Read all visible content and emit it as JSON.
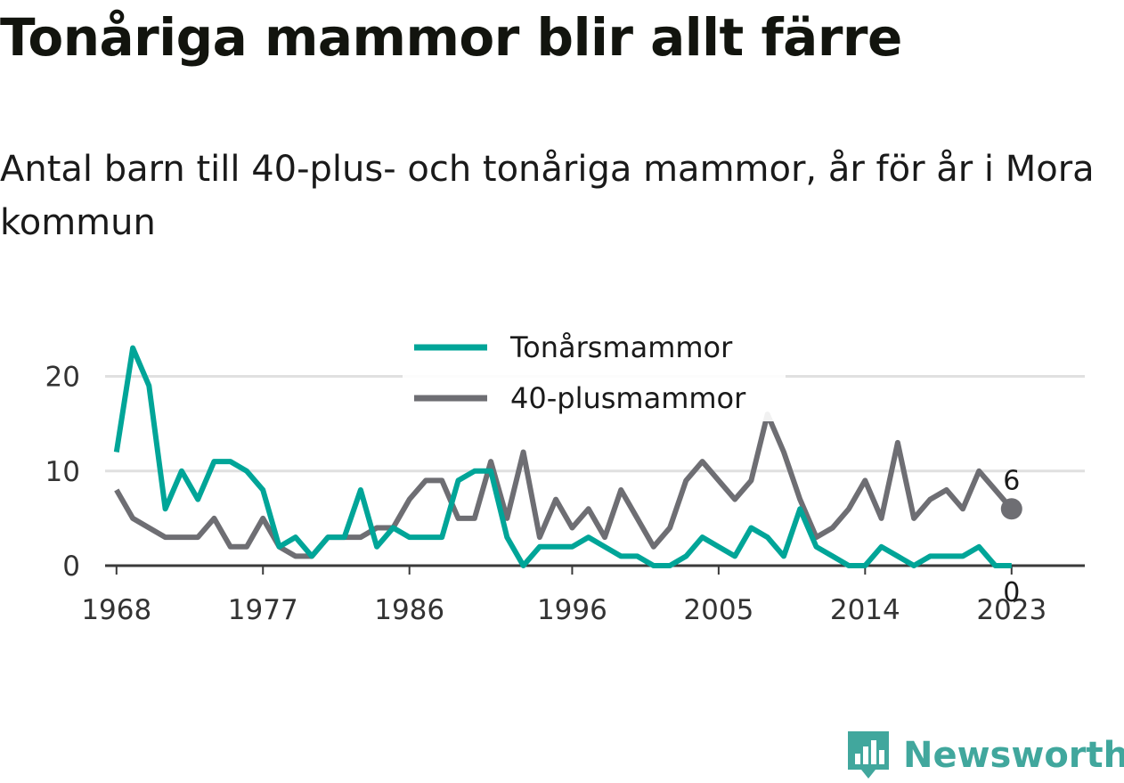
{
  "title": "Tonåriga mammor blir allt färre",
  "subtitle": "Antal barn till 40-plus- och tonåriga mammor, år för år i Mora kommun",
  "brand": {
    "name": "Newsworthy",
    "icon": "newsworthy-logo-icon",
    "color": "#41a79d"
  },
  "chart_data": {
    "type": "line",
    "title": "Tonåriga mammor blir allt färre",
    "subtitle": "Antal barn till 40-plus- och tonåriga mammor, år för år i Mora kommun",
    "xlabel": "",
    "ylabel": "",
    "x": [
      1968,
      1969,
      1970,
      1971,
      1972,
      1973,
      1974,
      1975,
      1976,
      1977,
      1978,
      1979,
      1980,
      1981,
      1982,
      1983,
      1984,
      1985,
      1986,
      1987,
      1988,
      1989,
      1990,
      1991,
      1992,
      1993,
      1994,
      1995,
      1996,
      1997,
      1998,
      1999,
      2000,
      2001,
      2002,
      2003,
      2004,
      2005,
      2006,
      2007,
      2008,
      2009,
      2010,
      2011,
      2012,
      2013,
      2014,
      2015,
      2016,
      2017,
      2018,
      2019,
      2020,
      2021,
      2022,
      2023
    ],
    "xticks": [
      "1968",
      "1977",
      "1986",
      "1996",
      "2005",
      "2014",
      "2023"
    ],
    "yticks": [
      "0",
      "10",
      "20"
    ],
    "xlim": [
      1967.3,
      2027.5
    ],
    "ylim": [
      0,
      24
    ],
    "grid": true,
    "legend_position": "top-center",
    "series": [
      {
        "name": "Tonårsmammor",
        "color": "#00a598",
        "values": [
          12,
          23,
          19,
          6,
          10,
          7,
          11,
          11,
          10,
          8,
          2,
          3,
          1,
          3,
          3,
          8,
          2,
          4,
          3,
          3,
          3,
          9,
          10,
          10,
          3,
          0,
          2,
          2,
          2,
          3,
          2,
          1,
          1,
          0,
          0,
          1,
          3,
          2,
          1,
          4,
          3,
          1,
          6,
          2,
          1,
          0,
          0,
          2,
          1,
          0,
          1,
          1,
          1,
          2,
          0,
          0
        ],
        "end_label": "0"
      },
      {
        "name": "40-plusmammor",
        "color": "#6e6e73",
        "values": [
          8,
          5,
          4,
          3,
          3,
          3,
          5,
          2,
          2,
          5,
          2,
          1,
          1,
          3,
          3,
          3,
          4,
          4,
          7,
          9,
          9,
          5,
          5,
          11,
          5,
          12,
          3,
          7,
          4,
          6,
          3,
          8,
          5,
          2,
          4,
          9,
          11,
          9,
          7,
          9,
          16,
          12,
          7,
          3,
          4,
          6,
          9,
          5,
          13,
          5,
          7,
          8,
          6,
          10,
          8,
          6
        ],
        "end_label": "6"
      }
    ]
  }
}
